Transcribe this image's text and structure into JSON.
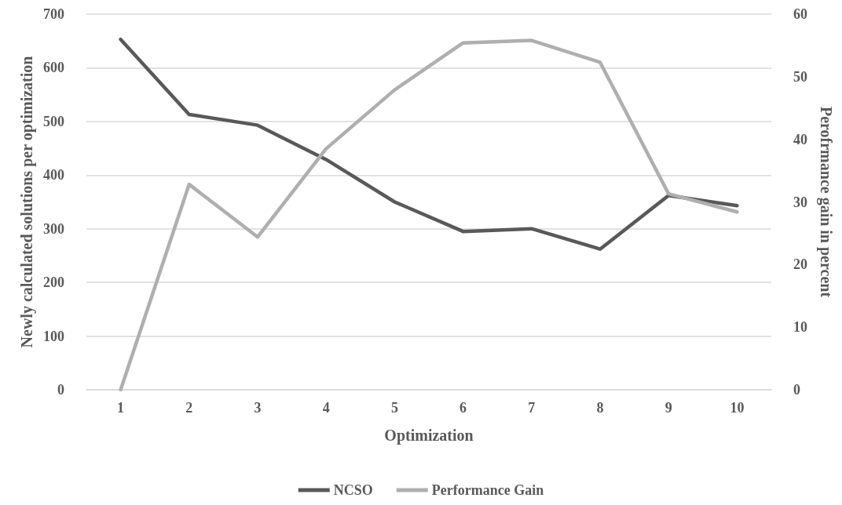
{
  "chart_data": {
    "type": "line",
    "xlabel": "Optimization",
    "ylabel": "Newly calculated solutions per optimization",
    "y2label": "Perofrmance gain in percent",
    "categories": [
      "1",
      "2",
      "3",
      "4",
      "5",
      "6",
      "7",
      "8",
      "9",
      "10"
    ],
    "series": [
      {
        "name": "NCSO",
        "color": "#595959",
        "values": [
          653,
          513,
          493,
          429,
          350,
          295,
          300,
          262,
          362,
          343
        ]
      },
      {
        "name": "Performance Gain",
        "color": "#afafaf",
        "axis": "y2",
        "values": [
          0,
          32.8,
          24.4,
          38.5,
          47.9,
          55.4,
          55.8,
          52.3,
          31.3,
          28.4
        ]
      }
    ],
    "ylim": [
      0,
      700
    ],
    "yticks": [
      0,
      100,
      200,
      300,
      400,
      500,
      600,
      700
    ],
    "y2lim": [
      0,
      60
    ],
    "y2ticks": [
      0,
      10,
      20,
      30,
      40,
      50,
      60
    ],
    "grid": "y",
    "legend": "bottom",
    "marker": "none",
    "line_style": "solid"
  }
}
